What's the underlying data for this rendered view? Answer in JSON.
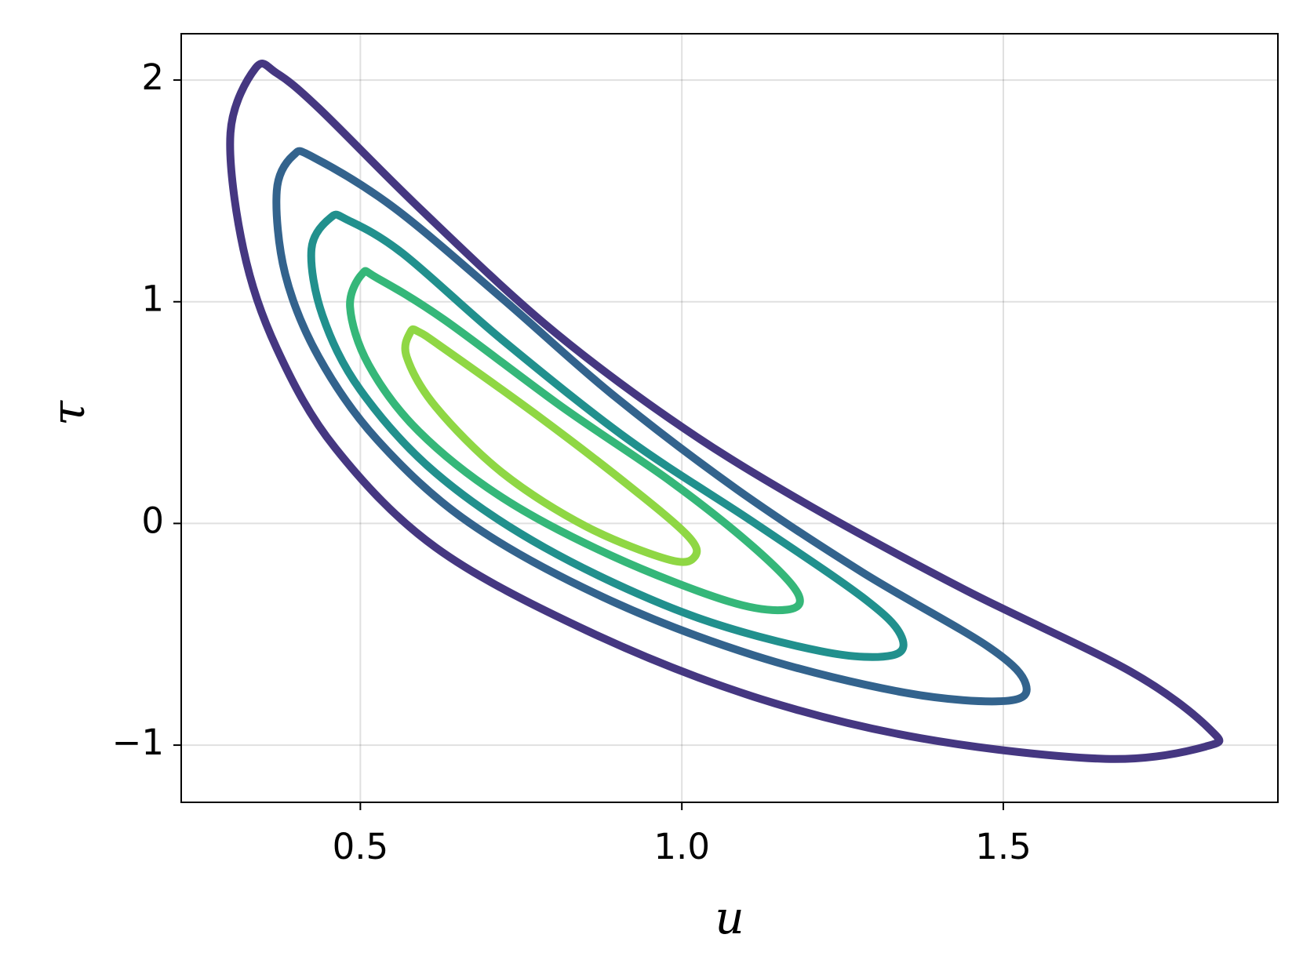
{
  "chart_data": {
    "type": "contour",
    "x_label": "u",
    "y_label": "τ",
    "xlim": [
      0.2214,
      1.927
    ],
    "ylim": [
      -1.258,
      2.209
    ],
    "xticks": [
      0.5,
      {
        "value": 1.0,
        "label": "1.0"
      },
      1.5
    ],
    "yticks": [
      {
        "value": -1,
        "label": "−1"
      },
      0,
      1,
      2
    ],
    "grid": true,
    "series": [
      {
        "color": "#453781",
        "x": [
          0.337,
          0.298,
          0.318,
          0.37,
          0.461,
          0.617,
          0.852,
          1.112,
          1.372,
          1.659,
          1.815,
          1.822,
          1.699,
          1.438,
          1.177,
          0.982,
          0.786,
          0.591,
          0.435,
          0.37
        ],
        "y": [
          2.054,
          1.762,
          1.238,
          0.789,
          0.34,
          -0.108,
          -0.483,
          -0.782,
          -0.969,
          -1.062,
          -1.006,
          -0.931,
          -0.67,
          -0.296,
          0.116,
          0.471,
          0.902,
          1.425,
          1.874,
          2.031
        ]
      },
      {
        "color": "#33638d",
        "x": [
          0.396,
          0.37,
          0.383,
          0.435,
          0.526,
          0.669,
          0.878,
          1.112,
          1.346,
          1.503,
          1.535,
          1.477,
          1.281,
          1.086,
          0.891,
          0.721,
          0.552,
          0.428
        ],
        "y": [
          1.661,
          1.5,
          1.126,
          0.752,
          0.378,
          0.004,
          -0.333,
          -0.595,
          -0.763,
          -0.801,
          -0.726,
          -0.557,
          -0.221,
          0.153,
          0.584,
          1.014,
          1.425,
          1.65
        ]
      },
      {
        "color": "#21908d",
        "x": [
          0.454,
          0.424,
          0.441,
          0.5,
          0.617,
          0.786,
          1.008,
          1.216,
          1.327,
          1.34,
          1.281,
          1.112,
          0.917,
          0.721,
          0.565,
          0.48
        ],
        "y": [
          1.38,
          1.238,
          0.939,
          0.602,
          0.228,
          -0.108,
          -0.408,
          -0.576,
          -0.595,
          -0.501,
          -0.333,
          0.004,
          0.378,
          0.827,
          1.22,
          1.369
        ]
      },
      {
        "color": "#35b779",
        "x": [
          0.503,
          0.484,
          0.513,
          0.591,
          0.721,
          0.891,
          1.073,
          1.164,
          1.18,
          1.112,
          0.982,
          0.813,
          0.63,
          0.526
        ],
        "y": [
          1.126,
          0.976,
          0.715,
          0.415,
          0.116,
          -0.146,
          -0.352,
          -0.389,
          -0.314,
          -0.108,
          0.191,
          0.527,
          0.92,
          1.107
        ]
      },
      {
        "color": "#8fd744",
        "x": [
          0.578,
          0.572,
          0.617,
          0.721,
          0.852,
          0.982,
          1.021,
          1.008,
          0.917,
          0.774,
          0.63,
          0.591
        ],
        "y": [
          0.864,
          0.752,
          0.527,
          0.228,
          -0.015,
          -0.165,
          -0.146,
          -0.052,
          0.172,
          0.49,
          0.789,
          0.864
        ]
      }
    ]
  }
}
